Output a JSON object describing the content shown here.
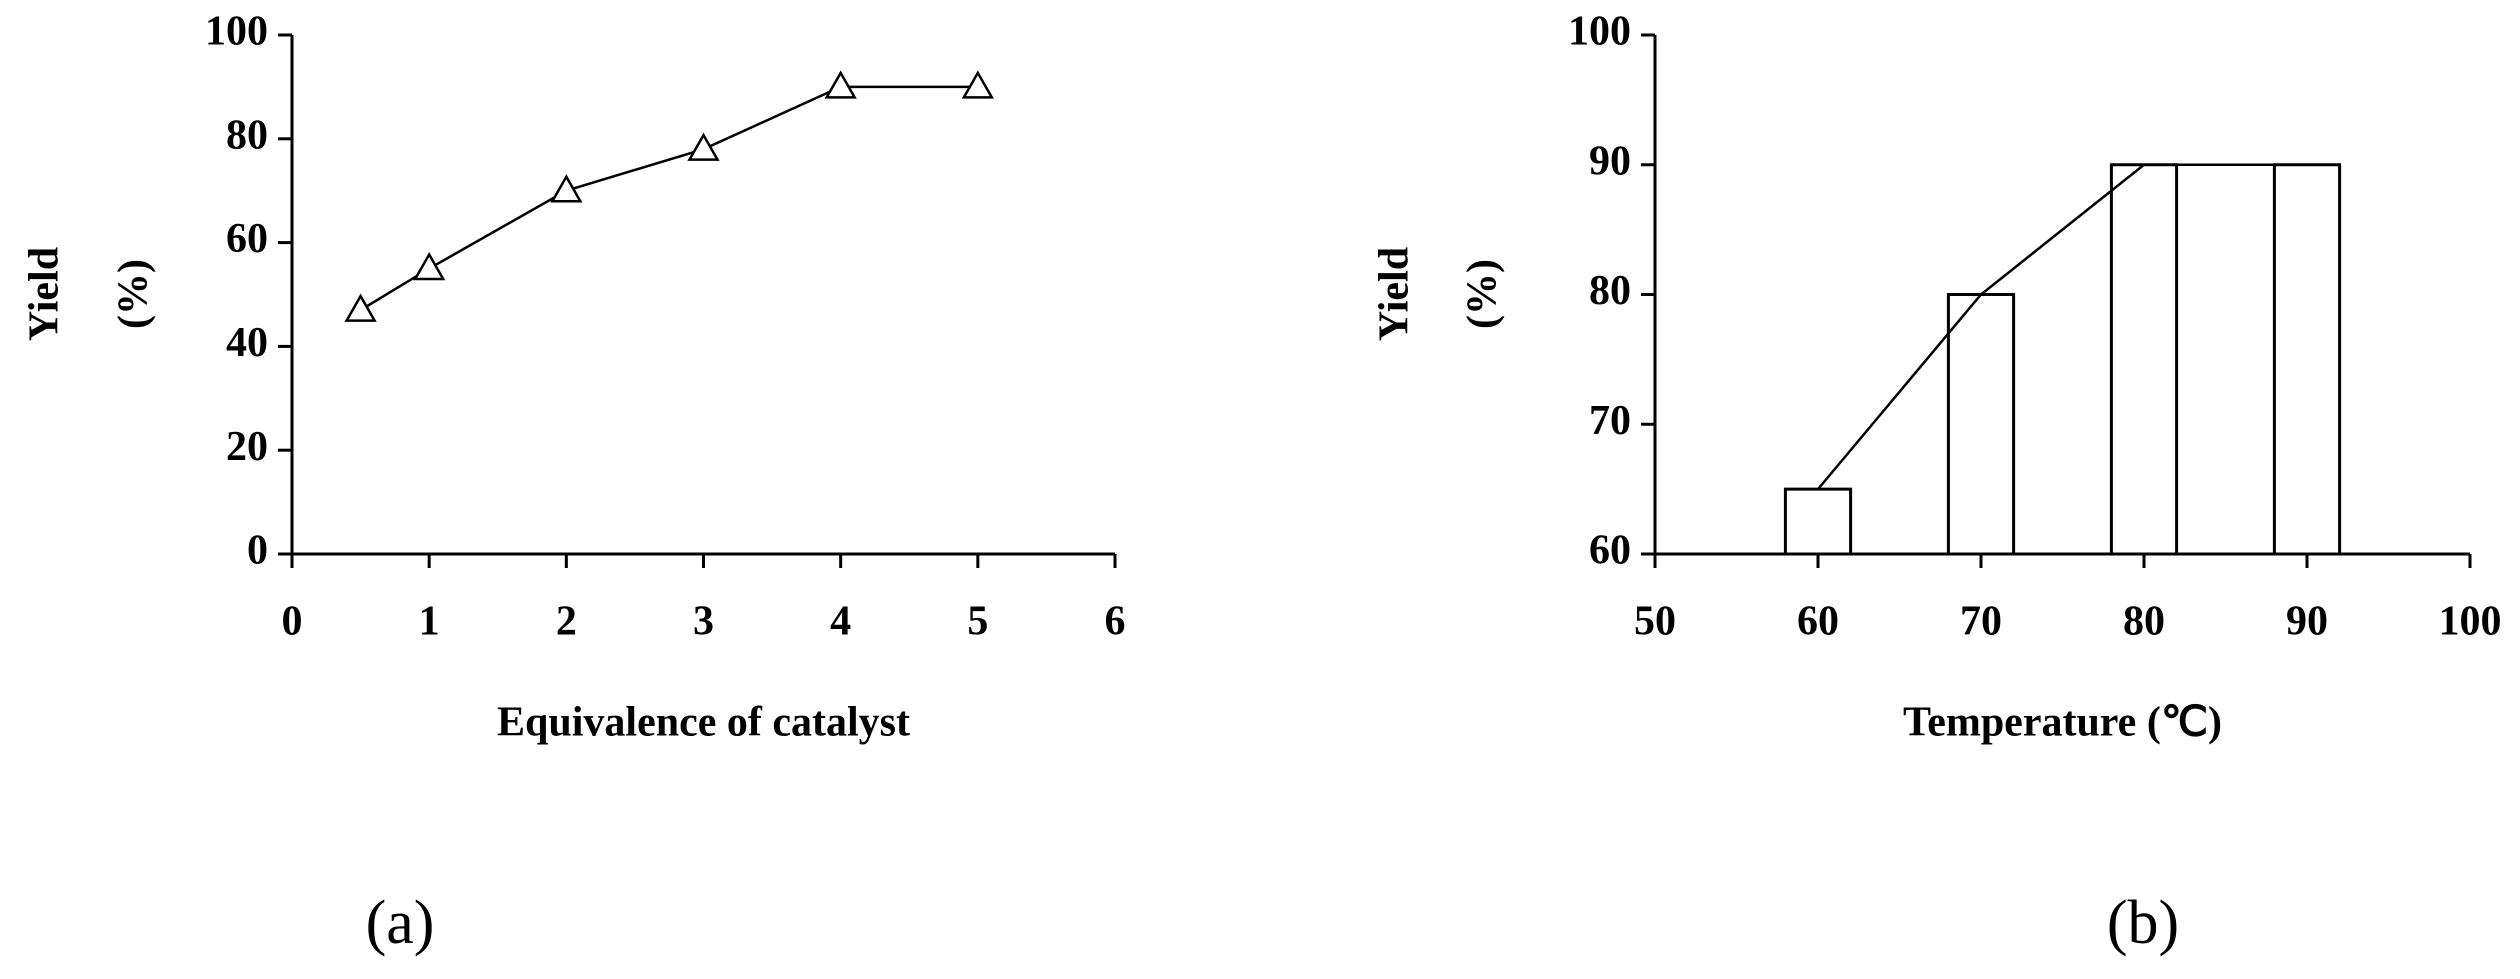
{
  "chart_data": [
    {
      "type": "line",
      "panel_label": "(a)",
      "xlabel": "Equivalence of catalyst",
      "ylabel": [
        "Yield",
        "(%)"
      ],
      "x": [
        0.5,
        1,
        2,
        3,
        4,
        5
      ],
      "values": [
        47,
        55,
        70,
        78,
        90,
        90
      ],
      "marker": "triangle",
      "color": "#000000",
      "xlim": [
        0,
        6
      ],
      "xticks": [
        0,
        1,
        2,
        3,
        4,
        5,
        6
      ],
      "ylim": [
        0,
        100
      ],
      "yticks": [
        0,
        20,
        40,
        60,
        80,
        100
      ],
      "grid": false
    },
    {
      "type": "bar",
      "panel_label": "(b)",
      "xlabel": "Temperature (℃)",
      "ylabel": [
        "Yield",
        "(%)"
      ],
      "x": [
        60,
        70,
        80,
        90
      ],
      "values": [
        65,
        80,
        90,
        90
      ],
      "connect_line": true,
      "color": "#000000",
      "xlim": [
        50,
        100
      ],
      "xticks": [
        50,
        60,
        70,
        80,
        90,
        100
      ],
      "ylim": [
        60,
        100
      ],
      "yticks": [
        60,
        70,
        80,
        90,
        100
      ],
      "grid": false
    }
  ]
}
